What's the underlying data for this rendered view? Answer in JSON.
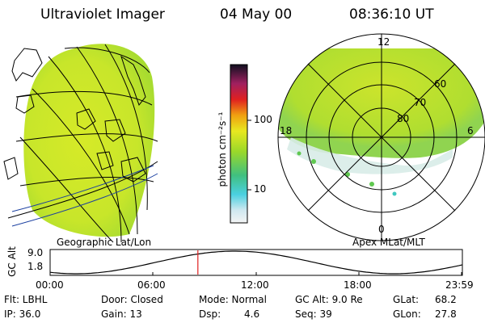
{
  "header": {
    "title": "Ultraviolet Imager",
    "date": "04 May 00",
    "time": "08:36:10 UT"
  },
  "panels": {
    "left_caption": "Geographic Lat/Lon",
    "right_caption": "Apex MLat/MLT"
  },
  "polar_labels": {
    "mlt_top": "12",
    "mlt_bottom": "0",
    "mlt_left": "18",
    "mlt_right": "6",
    "lat_60": "60",
    "lat_70": "70",
    "lat_80": "80"
  },
  "colorbar": {
    "unit_label": "photon cm⁻²s⁻¹",
    "tick_100": "100",
    "tick_10": "10",
    "range_min": 3,
    "range_max": 400,
    "scale": "log"
  },
  "altitude_plot": {
    "ylabel": "GC Alt",
    "ytick_top": "9.0",
    "ytick_bottom": "1.8",
    "ymin": 1.8,
    "ymax": 9.0,
    "xticks": [
      "00:00",
      "06:00",
      "12:00",
      "18:00",
      "23:59"
    ],
    "current_time_hours": 8.6
  },
  "info": {
    "flt": "Flt: LBHL",
    "ip": "IP: 36.0",
    "door": "Door: Closed",
    "gain": "Gain: 13",
    "mode": "Mode: Normal",
    "dsp_label": "Dsp:",
    "dsp_value": "4.6",
    "gcalt": "GC Alt: 9.0 Re",
    "seq": "Seq: 39",
    "glat_label": "GLat:",
    "glat_value": "68.2",
    "glon_label": "GLon:",
    "glon_value": "27.8"
  },
  "colors": {
    "accent_marker": "#e02020",
    "curve": "#000000"
  }
}
